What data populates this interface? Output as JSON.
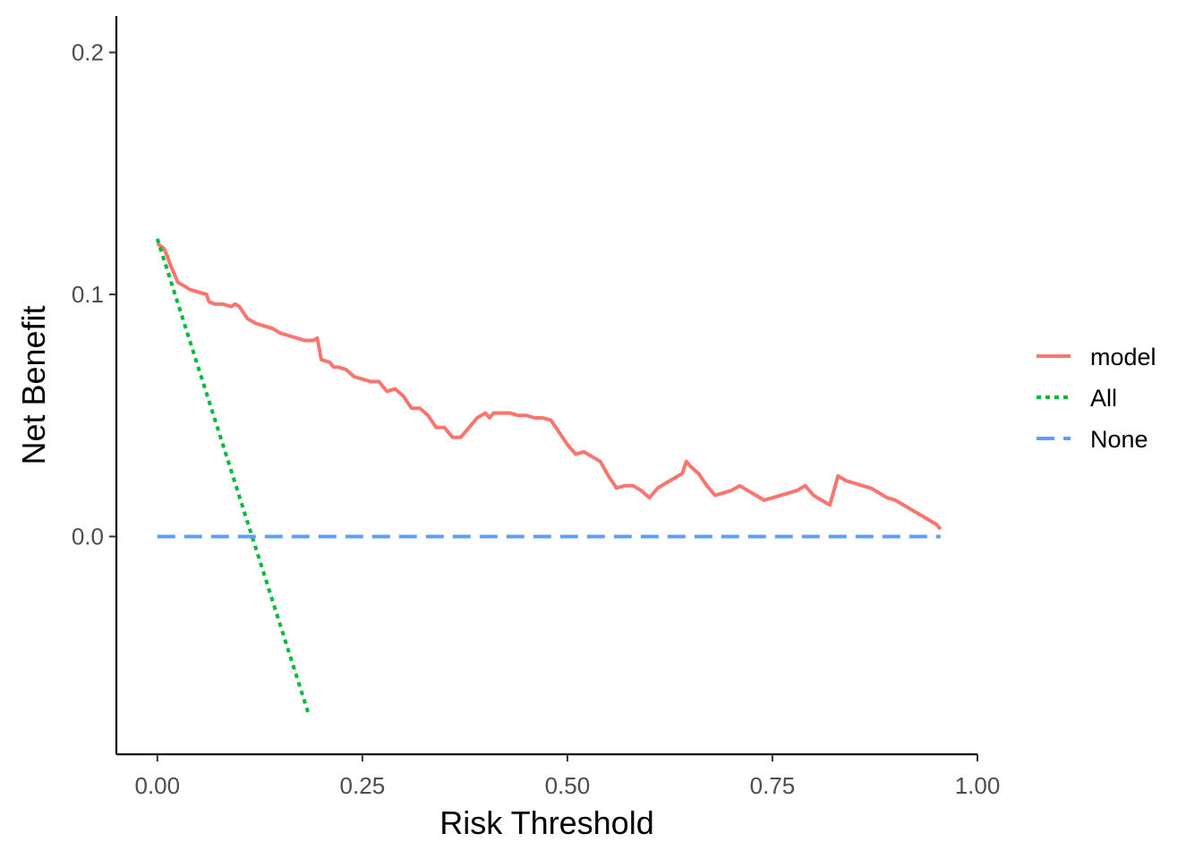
{
  "chart_data": {
    "type": "line",
    "title": "",
    "xlabel": "Risk Threshold",
    "ylabel": "Net Benefit",
    "xlim": [
      -0.05,
      1.0
    ],
    "ylim": [
      -0.09,
      0.215
    ],
    "x_ticks": [
      0.0,
      0.25,
      0.5,
      0.75,
      1.0
    ],
    "x_tick_labels": [
      "0.00",
      "0.25",
      "0.50",
      "0.75",
      "1.00"
    ],
    "y_ticks": [
      0.0,
      0.1,
      0.2
    ],
    "y_tick_labels": [
      "0.0",
      "0.1",
      "0.2"
    ],
    "grid": false,
    "legend_position": "right",
    "series": [
      {
        "name": "model",
        "color": "#F8766D",
        "dash": "solid",
        "x": [
          0.0,
          0.008,
          0.012,
          0.016,
          0.02,
          0.025,
          0.03,
          0.04,
          0.05,
          0.06,
          0.063,
          0.07,
          0.08,
          0.09,
          0.095,
          0.1,
          0.11,
          0.12,
          0.13,
          0.14,
          0.15,
          0.16,
          0.17,
          0.18,
          0.19,
          0.195,
          0.2,
          0.21,
          0.215,
          0.22,
          0.23,
          0.24,
          0.25,
          0.26,
          0.27,
          0.275,
          0.28,
          0.29,
          0.3,
          0.31,
          0.32,
          0.33,
          0.34,
          0.35,
          0.36,
          0.37,
          0.38,
          0.39,
          0.4,
          0.405,
          0.41,
          0.42,
          0.43,
          0.44,
          0.45,
          0.46,
          0.47,
          0.48,
          0.49,
          0.5,
          0.51,
          0.52,
          0.53,
          0.54,
          0.55,
          0.56,
          0.57,
          0.58,
          0.59,
          0.6,
          0.61,
          0.62,
          0.63,
          0.64,
          0.645,
          0.65,
          0.66,
          0.67,
          0.68,
          0.69,
          0.7,
          0.71,
          0.72,
          0.73,
          0.74,
          0.75,
          0.76,
          0.77,
          0.78,
          0.79,
          0.8,
          0.81,
          0.82,
          0.83,
          0.84,
          0.85,
          0.86,
          0.87,
          0.88,
          0.89,
          0.9,
          0.91,
          0.92,
          0.93,
          0.94,
          0.95,
          0.955
        ],
        "y": [
          0.121,
          0.119,
          0.116,
          0.112,
          0.109,
          0.105,
          0.104,
          0.102,
          0.101,
          0.1,
          0.097,
          0.096,
          0.096,
          0.095,
          0.096,
          0.095,
          0.09,
          0.088,
          0.087,
          0.086,
          0.084,
          0.083,
          0.082,
          0.081,
          0.081,
          0.082,
          0.073,
          0.072,
          0.07,
          0.07,
          0.069,
          0.066,
          0.065,
          0.064,
          0.064,
          0.062,
          0.06,
          0.061,
          0.058,
          0.053,
          0.053,
          0.05,
          0.045,
          0.045,
          0.041,
          0.041,
          0.045,
          0.049,
          0.051,
          0.049,
          0.051,
          0.051,
          0.051,
          0.05,
          0.05,
          0.049,
          0.049,
          0.048,
          0.043,
          0.038,
          0.034,
          0.035,
          0.033,
          0.031,
          0.025,
          0.02,
          0.021,
          0.021,
          0.019,
          0.016,
          0.02,
          0.022,
          0.024,
          0.026,
          0.031,
          0.029,
          0.026,
          0.021,
          0.017,
          0.018,
          0.019,
          0.021,
          0.019,
          0.017,
          0.015,
          0.016,
          0.017,
          0.018,
          0.019,
          0.021,
          0.017,
          0.015,
          0.013,
          0.025,
          0.023,
          0.022,
          0.021,
          0.02,
          0.018,
          0.016,
          0.015,
          0.013,
          0.011,
          0.009,
          0.007,
          0.005,
          0.003
        ]
      },
      {
        "name": "All",
        "color": "#00BA38",
        "dash": "dotted",
        "x": [
          0.0,
          0.185
        ],
        "y": [
          0.123,
          -0.074
        ]
      },
      {
        "name": "None",
        "color": "#619CFF",
        "dash": "dashed",
        "x": [
          0.0,
          0.955
        ],
        "y": [
          0.0,
          0.0
        ]
      }
    ]
  }
}
